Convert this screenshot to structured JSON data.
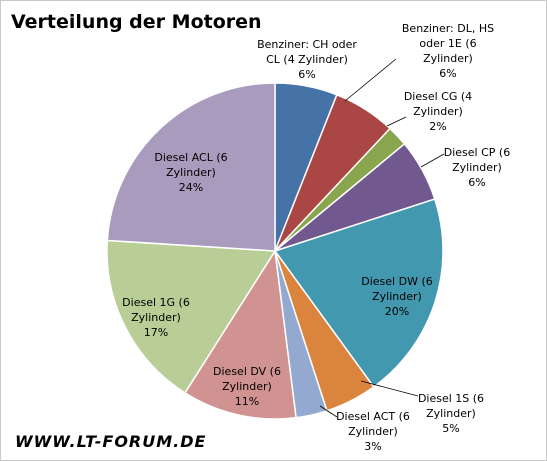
{
  "chart_data": {
    "type": "pie",
    "title": "Verteilung der Motoren",
    "footer": "WWW.LT-FORUM.DE",
    "slices": [
      {
        "label": "Benziner: CH oder CL (4 Zylinder)",
        "pct_label": "6%",
        "value": 6,
        "color": "#4572a7"
      },
      {
        "label": "Benziner: DL, HS oder 1E (6 Zylinder)",
        "pct_label": "6%",
        "value": 6,
        "color": "#aa4643"
      },
      {
        "label": "Diesel CG (4 Zylinder)",
        "pct_label": "2%",
        "value": 2,
        "color": "#89a54e"
      },
      {
        "label": "Diesel CP (6 Zylinder)",
        "pct_label": "6%",
        "value": 6,
        "color": "#71588f"
      },
      {
        "label": "Diesel DW (6 Zylinder)",
        "pct_label": "20%",
        "value": 20,
        "color": "#4198af"
      },
      {
        "label": "Diesel 1S (6 Zylinder)",
        "pct_label": "5%",
        "value": 5,
        "color": "#db843d"
      },
      {
        "label": "Diesel ACT (6 Zylinder)",
        "pct_label": "3%",
        "value": 3,
        "color": "#93a9cf"
      },
      {
        "label": "Diesel DV (6 Zylinder)",
        "pct_label": "11%",
        "value": 11,
        "color": "#d19392"
      },
      {
        "label": "Diesel 1G (6 Zylinder)",
        "pct_label": "17%",
        "value": 17,
        "color": "#b9cd96"
      },
      {
        "label": "Diesel ACL (6 Zylinder)",
        "pct_label": "24%",
        "value": 24,
        "color": "#a99bbd"
      }
    ]
  }
}
